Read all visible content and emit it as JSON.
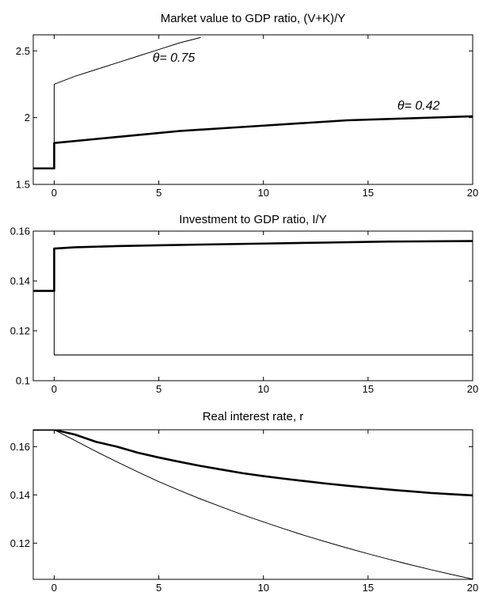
{
  "chart_data": [
    {
      "type": "line",
      "title": "Market value to GDP ratio, (V+K)/Y",
      "xlabel": "",
      "ylabel": "",
      "xlim": [
        -1,
        20
      ],
      "ylim": [
        1.5,
        2.62
      ],
      "xticks": [
        "0",
        "5",
        "10",
        "15",
        "20"
      ],
      "yticks": [
        "1.5",
        "2",
        "2.5"
      ],
      "series": [
        {
          "name": "θ= 0.42",
          "style": "thick",
          "x": [
            -1,
            0,
            0,
            2,
            4,
            6,
            8,
            10,
            12,
            14,
            16,
            18,
            20
          ],
          "y": [
            1.62,
            1.62,
            1.81,
            1.84,
            1.87,
            1.9,
            1.92,
            1.94,
            1.96,
            1.98,
            1.99,
            2.0,
            2.01
          ]
        },
        {
          "name": "θ= 0.75",
          "style": "thin",
          "x": [
            -1,
            0,
            0,
            1,
            2,
            3,
            4,
            5,
            6,
            7
          ],
          "y": [
            1.62,
            1.62,
            2.25,
            2.31,
            2.36,
            2.41,
            2.46,
            2.51,
            2.56,
            2.6
          ]
        }
      ],
      "annotations": [
        {
          "text": "θ= 0.75",
          "x": 4.7,
          "y": 2.42
        },
        {
          "text": "θ= 0.42",
          "x": 16.4,
          "y": 2.06
        }
      ]
    },
    {
      "type": "line",
      "title": "Investment to GDP ratio, I/Y",
      "xlabel": "",
      "ylabel": "",
      "xlim": [
        -1,
        20
      ],
      "ylim": [
        0.1,
        0.16
      ],
      "xticks": [
        "0",
        "5",
        "10",
        "15",
        "20"
      ],
      "yticks": [
        "0.1",
        "0.12",
        "0.14",
        "0.16"
      ],
      "series": [
        {
          "style": "thick",
          "x": [
            -1,
            0,
            0,
            1,
            3,
            5,
            7,
            10,
            13,
            16,
            20
          ],
          "y": [
            0.136,
            0.136,
            0.153,
            0.1535,
            0.154,
            0.1543,
            0.1546,
            0.155,
            0.1554,
            0.1558,
            0.156
          ]
        },
        {
          "style": "thin",
          "x": [
            -1,
            0,
            0,
            20
          ],
          "y": [
            0.136,
            0.136,
            0.1103,
            0.1103
          ]
        }
      ]
    },
    {
      "type": "line",
      "title": "Real interest rate, r",
      "xlabel": "",
      "ylabel": "",
      "xlim": [
        -1,
        20
      ],
      "ylim": [
        0.105,
        0.167
      ],
      "xticks": [
        "0",
        "5",
        "10",
        "15",
        "20"
      ],
      "yticks": [
        "0.12",
        "0.14",
        "0.16"
      ],
      "series": [
        {
          "style": "thick",
          "x": [
            -1,
            0,
            1,
            2,
            3,
            4,
            5,
            6,
            7,
            8,
            9,
            10,
            11,
            12,
            13,
            14,
            15,
            16,
            17,
            18,
            19,
            20
          ],
          "y": [
            0.167,
            0.167,
            0.165,
            0.162,
            0.16,
            0.1575,
            0.1555,
            0.1537,
            0.152,
            0.1505,
            0.149,
            0.1478,
            0.1467,
            0.1457,
            0.1447,
            0.1438,
            0.143,
            0.1422,
            0.1415,
            0.1408,
            0.1403,
            0.1398
          ]
        },
        {
          "style": "thin",
          "x": [
            -1,
            0,
            1,
            2,
            3,
            4,
            5,
            6,
            7,
            8,
            9,
            10,
            11,
            12,
            13,
            14,
            15,
            16,
            17,
            18,
            19,
            20
          ],
          "y": [
            0.167,
            0.167,
            0.1625,
            0.158,
            0.1537,
            0.1495,
            0.1455,
            0.1418,
            0.1383,
            0.135,
            0.1318,
            0.1288,
            0.1259,
            0.1231,
            0.1205,
            0.118,
            0.1156,
            0.1133,
            0.1111,
            0.109,
            0.107,
            0.1051
          ]
        }
      ]
    }
  ]
}
